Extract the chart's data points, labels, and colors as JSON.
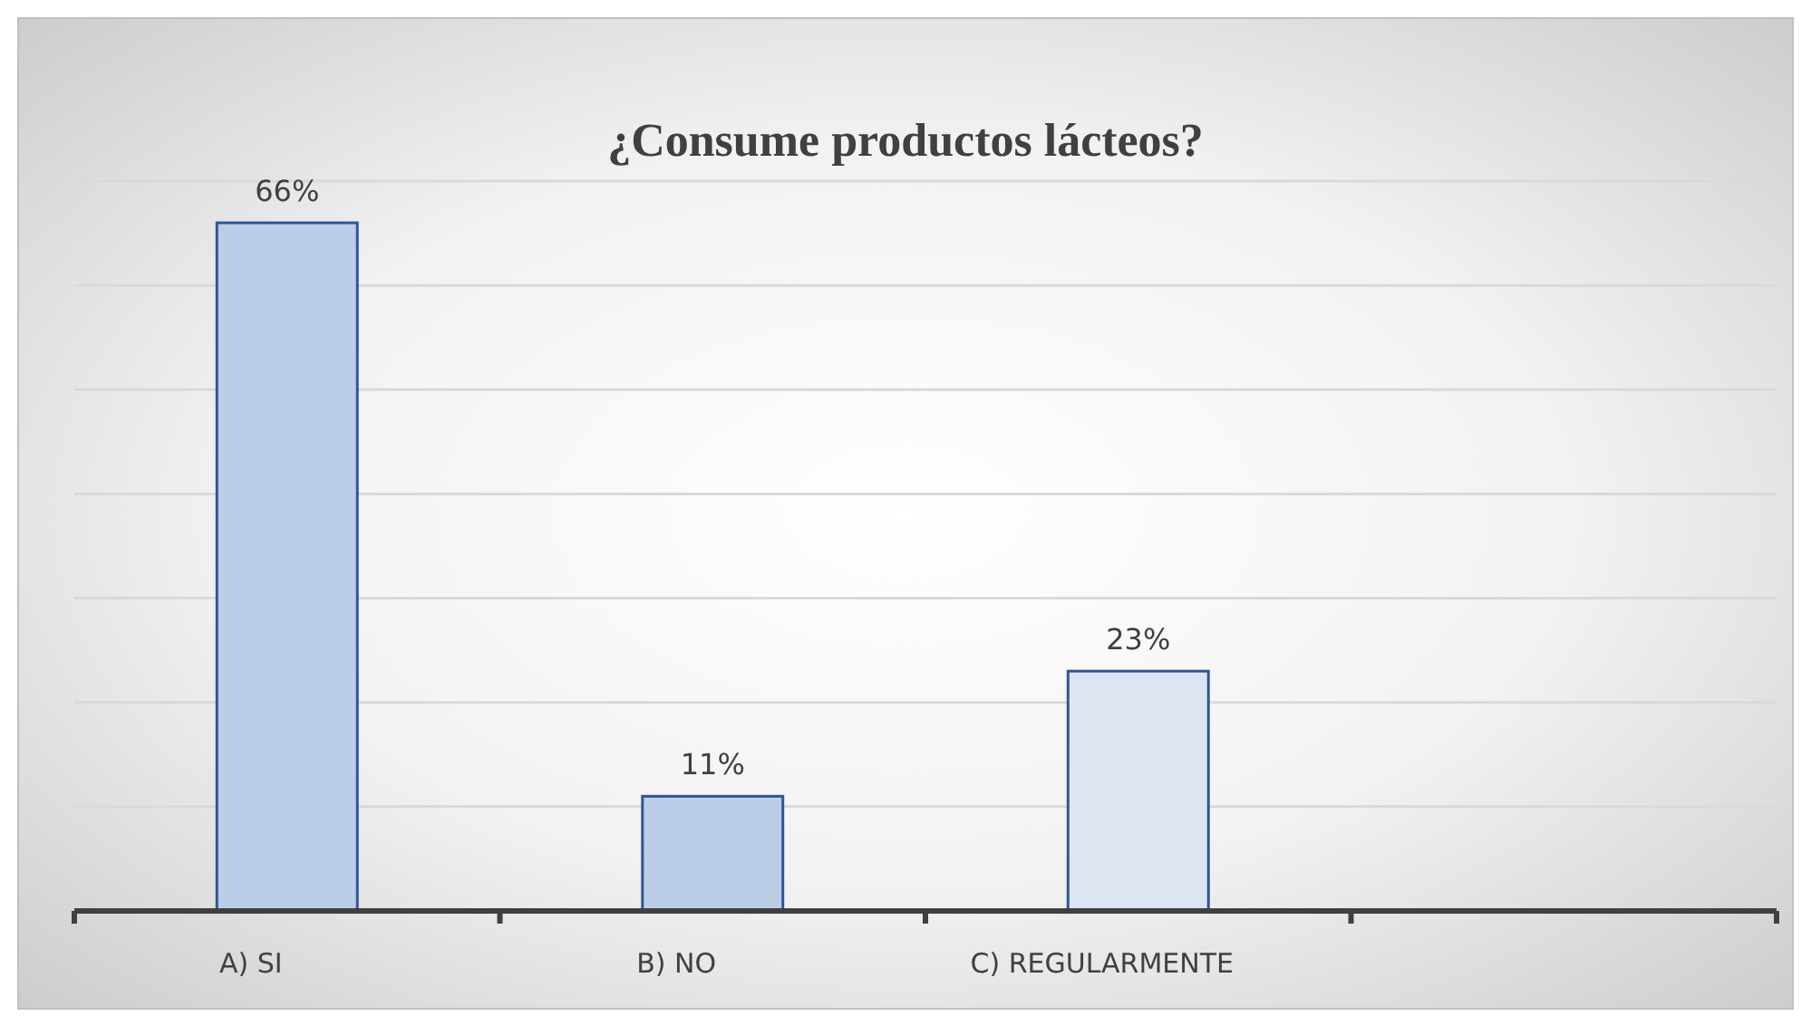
{
  "chart_data": {
    "type": "bar",
    "title": "¿Consume productos lácteos?",
    "categories": [
      "A) SI",
      "B) NO",
      "C) REGULARMENTE",
      null
    ],
    "values": [
      66,
      11,
      23,
      null
    ],
    "colors": [
      "#bccde8",
      "#bccde8",
      "#dde5f3",
      null
    ],
    "value_labels": [
      "66%",
      "11%",
      "23%",
      null
    ],
    "ylim": [
      0,
      70
    ],
    "yticks": [
      {
        "value": 0,
        "label": null
      },
      {
        "value": 10,
        "label": null
      },
      {
        "value": 20,
        "label": null
      },
      {
        "value": 30,
        "label": null
      },
      {
        "value": 40,
        "label": null
      },
      {
        "value": 50,
        "label": null
      },
      {
        "value": 60,
        "label": null
      },
      {
        "value": 70,
        "label": null
      }
    ],
    "grid": "y",
    "tick_labels": "x"
  }
}
